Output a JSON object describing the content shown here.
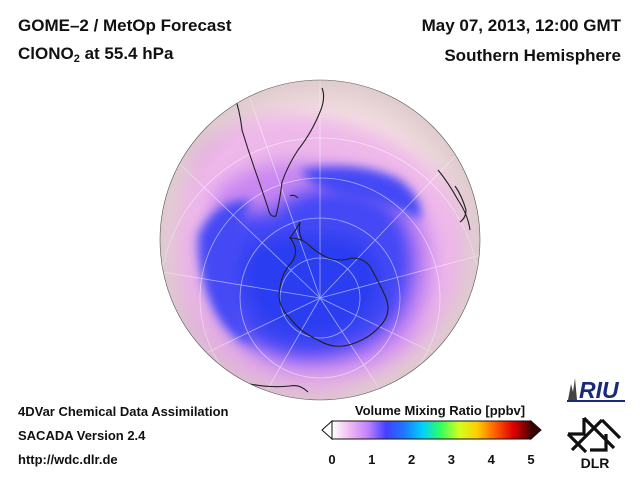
{
  "header": {
    "title": "GOME–2 / MetOp Forecast",
    "species_main": "ClONO",
    "species_sub": "2",
    "species_level": " at 55.4 hPa",
    "date": "May 07, 2013, 12:00 GMT",
    "hemisphere": "Southern Hemisphere"
  },
  "footer": {
    "line1": "4DVar Chemical Data Assimilation",
    "line2": "SACADA Version 2.4",
    "line3": "http://wdc.dlr.de"
  },
  "colorbar": {
    "title": "Volume Mixing Ratio [ppbv]",
    "min": 0,
    "max": 5,
    "ticks": [
      "0",
      "1",
      "2",
      "3",
      "4",
      "5"
    ],
    "colors": [
      "#ffffff",
      "#f0b8f0",
      "#c080ff",
      "#4040ff",
      "#1e78ff",
      "#00d0ff",
      "#30ff60",
      "#d0ff20",
      "#ffd000",
      "#ff6000",
      "#e00000",
      "#500000"
    ]
  },
  "map": {
    "projection": "orthographic",
    "center": "South Pole",
    "colors": {
      "background_low": "#f2dde0",
      "pink": "#efb8ea",
      "violet": "#c987f2",
      "blue": "#4448f5",
      "deep_blue": "#2a3cf0",
      "coast": "#202020",
      "grid": "#ffffff"
    }
  },
  "logos": {
    "riu": "RIU",
    "dlr": "DLR"
  }
}
